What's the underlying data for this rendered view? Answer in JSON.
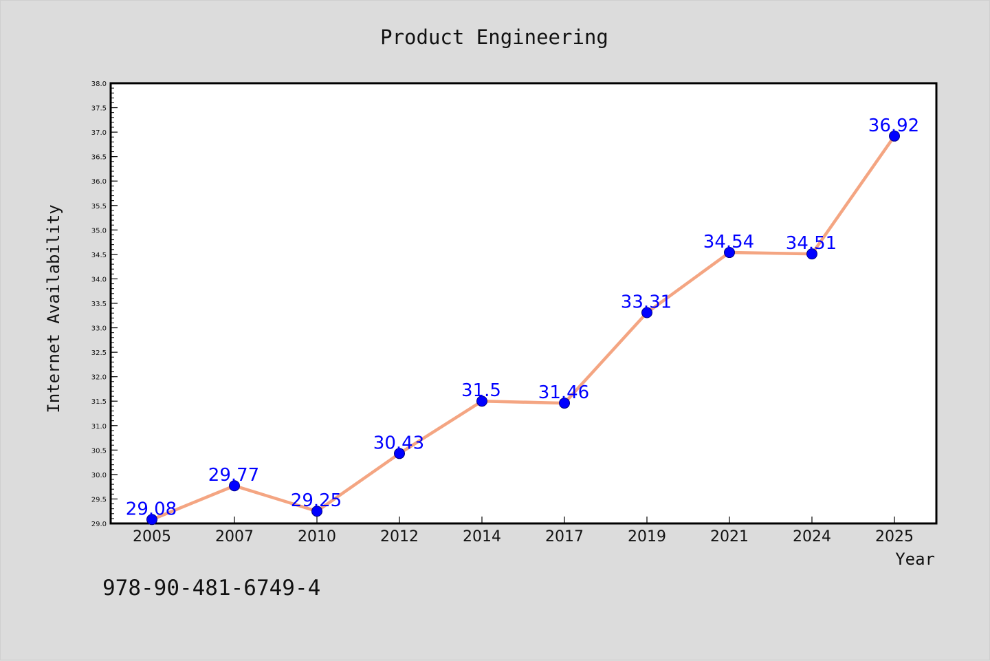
{
  "chart_data": {
    "type": "line",
    "title": "Product Engineering",
    "xlabel": "Year",
    "ylabel": "Internet Availability",
    "categories": [
      "2005",
      "2007",
      "2010",
      "2012",
      "2014",
      "2017",
      "2019",
      "2021",
      "2024",
      "2025"
    ],
    "values": [
      29.08,
      29.77,
      29.25,
      30.43,
      31.5,
      31.46,
      33.31,
      34.54,
      34.51,
      36.92
    ],
    "data_labels": [
      "29.08",
      "29.77",
      "29.25",
      "30.43",
      "31.5",
      "31.46",
      "33.31",
      "34.54",
      "34.51",
      "36.92"
    ],
    "ylim": [
      29.0,
      38.0
    ],
    "yticks": [
      "29.0",
      "29.5",
      "30.0",
      "30.5",
      "31.0",
      "31.5",
      "32.0",
      "32.5",
      "33.0",
      "33.5",
      "34.0",
      "34.5",
      "35.0",
      "35.5",
      "36.0",
      "36.5",
      "37.0",
      "37.5",
      "38.0"
    ],
    "grid": false,
    "colors": {
      "line": "#f4a582",
      "marker": "#0000ff",
      "label": "#0000ff",
      "background": "#dcdcdc",
      "plot_background": "#ffffff"
    }
  },
  "footer": {
    "isbn": "978-90-481-6749-4"
  }
}
